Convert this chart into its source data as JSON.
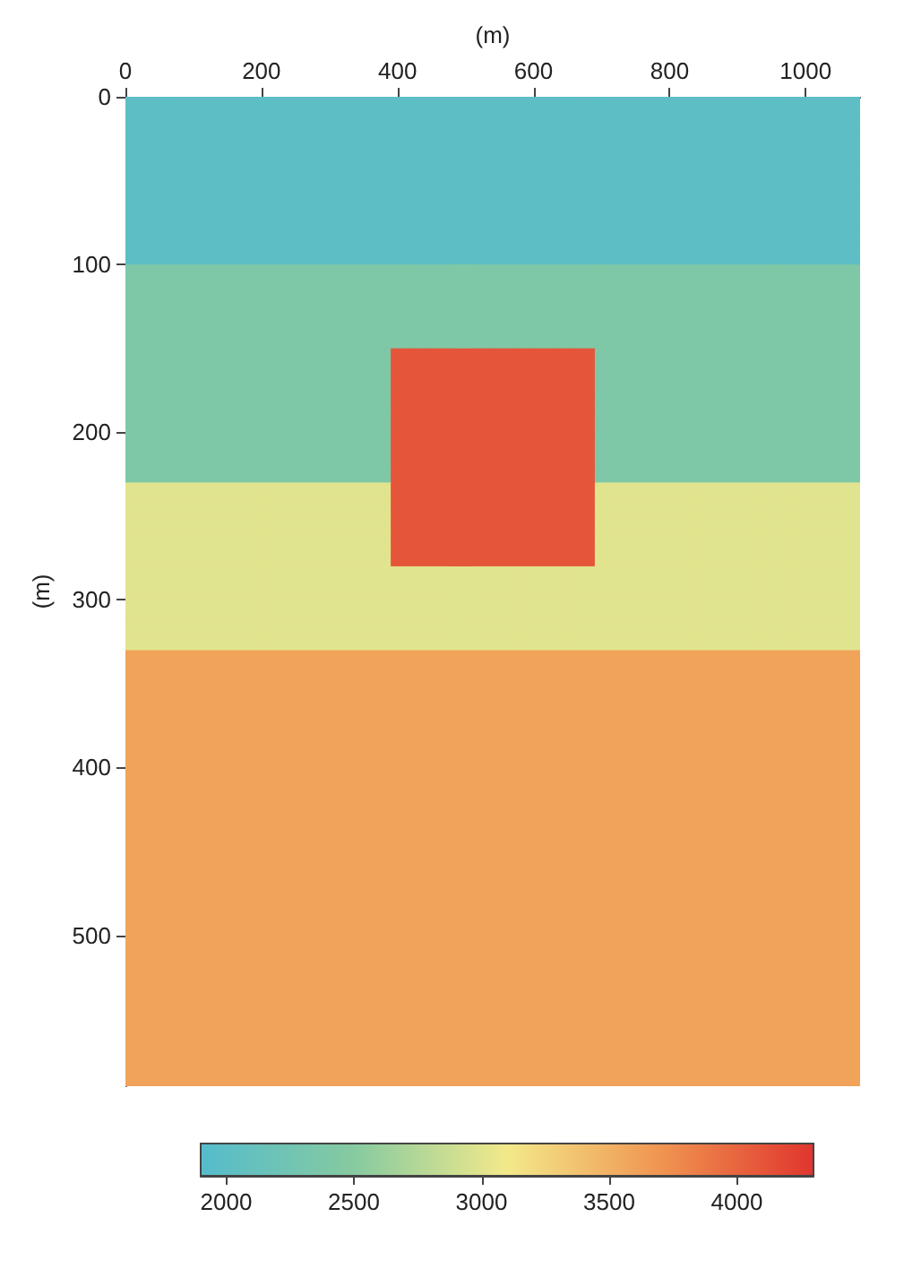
{
  "chart_data": {
    "type": "heatmap",
    "xlabel": "(m)",
    "ylabel": "(m)",
    "xlim": [
      0,
      1080
    ],
    "ylim": [
      590,
      0
    ],
    "xticks": [
      0,
      200,
      400,
      600,
      800,
      1000
    ],
    "yticks": [
      0,
      100,
      200,
      300,
      400,
      500
    ],
    "clim": [
      1900,
      4300
    ],
    "cticks": [
      2000,
      2500,
      3000,
      3500,
      4000
    ],
    "cells": [
      [
        2000,
        2000,
        2000,
        2000,
        2000,
        2000,
        2000,
        2000,
        2000,
        2000,
        2000,
        2000,
        2000,
        2000,
        2000,
        2000,
        2000,
        2000,
        2000,
        2000,
        2000,
        2000,
        2000,
        2000,
        2000,
        2000,
        2000,
        2000,
        2000,
        2000,
        2000,
        2000,
        2000,
        2000,
        2000,
        2000
      ],
      [
        2000,
        2000,
        2000,
        2000,
        2000,
        2000,
        2000,
        2000,
        2000,
        2000,
        2000,
        2000,
        2000,
        2000,
        2000,
        2000,
        2000,
        2000,
        2000,
        2000,
        2000,
        2000,
        2000,
        2000,
        2000,
        2000,
        2000,
        2000,
        2000,
        2000,
        2000,
        2000,
        2000,
        2000,
        2000,
        2000
      ],
      [
        2000,
        2000,
        2000,
        2000,
        2000,
        2000,
        2000,
        2000,
        2000,
        2000,
        2000,
        2000,
        2000,
        2000,
        2000,
        2000,
        2000,
        2000,
        2000,
        2000,
        2000,
        2000,
        2000,
        2000,
        2000,
        2000,
        2000,
        2000,
        2000,
        2000,
        2000,
        2000,
        2000,
        2000,
        2000,
        2000
      ],
      [
        2000,
        2000,
        2000,
        2000,
        2000,
        2000,
        2000,
        2000,
        2000,
        2000,
        2000,
        2000,
        2000,
        2000,
        2000,
        2000,
        2000,
        2000,
        2000,
        2000,
        2000,
        2000,
        2000,
        2000,
        2000,
        2000,
        2000,
        2000,
        2000,
        2000,
        2000,
        2000,
        2000,
        2000,
        2000,
        2000
      ],
      [
        2000,
        2000,
        2000,
        2000,
        2000,
        2000,
        2000,
        2000,
        2000,
        2000,
        2000,
        2000,
        2000,
        2000,
        2000,
        2000,
        2000,
        2000,
        2000,
        2000,
        2000,
        2000,
        2000,
        2000,
        2000,
        2000,
        2000,
        2000,
        2000,
        2000,
        2000,
        2000,
        2000,
        2000,
        2000,
        2000
      ],
      [
        2000,
        2000,
        2000,
        2000,
        2000,
        2000,
        2000,
        2000,
        2000,
        2000,
        2000,
        2000,
        2000,
        2000,
        2000,
        2000,
        2000,
        2000,
        2000,
        2000,
        2000,
        2000,
        2000,
        2000,
        2000,
        2000,
        2000,
        2000,
        2000,
        2000,
        2000,
        2000,
        2000,
        2000,
        2000,
        2000
      ],
      [
        2000,
        2000,
        2000,
        2000,
        2000,
        2000,
        2000,
        2000,
        2000,
        2000,
        2000,
        2000,
        2000,
        2000,
        2000,
        2000,
        2000,
        2000,
        2000,
        2000,
        2000,
        2000,
        2000,
        2000,
        2000,
        2000,
        2000,
        2000,
        2000,
        2000,
        2000,
        2000,
        2000,
        2000,
        2000,
        2000
      ],
      [
        2000,
        2000,
        2000,
        2000,
        2000,
        2000,
        2000,
        2000,
        2000,
        2000,
        2000,
        2000,
        2000,
        2000,
        2000,
        2000,
        2000,
        2000,
        2000,
        2000,
        2000,
        2000,
        2000,
        2000,
        2000,
        2000,
        2000,
        2000,
        2000,
        2000,
        2000,
        2000,
        2000,
        2000,
        2000,
        2000
      ],
      [
        2000,
        2000,
        2000,
        2000,
        2000,
        2000,
        2000,
        2000,
        2000,
        2000,
        2000,
        2000,
        2000,
        2000,
        2000,
        2000,
        2000,
        2000,
        2000,
        2000,
        2000,
        2000,
        2000,
        2000,
        2000,
        2000,
        2000,
        2000,
        2000,
        2000,
        2000,
        2000,
        2000,
        2000,
        2000,
        2000
      ],
      [
        2000,
        2000,
        2000,
        2000,
        2000,
        2000,
        2000,
        2000,
        2000,
        2000,
        2000,
        2000,
        2000,
        2000,
        2000,
        2000,
        2000,
        2000,
        2000,
        2000,
        2000,
        2000,
        2000,
        2000,
        2000,
        2000,
        2000,
        2000,
        2000,
        2000,
        2000,
        2000,
        2000,
        2000,
        2000,
        2000
      ],
      [
        2400,
        2400,
        2400,
        2400,
        2400,
        2400,
        2400,
        2400,
        2400,
        2400,
        2400,
        2400,
        2400,
        2400,
        2400,
        2400,
        2400,
        2400,
        2400,
        2400,
        2400,
        2400,
        2400,
        2400,
        2400,
        2400,
        2400,
        2400,
        2400,
        2400,
        2400,
        2400,
        2400,
        2400,
        2400,
        2400
      ],
      [
        2400,
        2400,
        2400,
        2400,
        2400,
        2400,
        2400,
        2400,
        2400,
        2400,
        2400,
        2400,
        2400,
        2400,
        2400,
        2400,
        2400,
        2400,
        2400,
        2400,
        2400,
        2400,
        2400,
        2400,
        2400,
        2400,
        2400,
        2400,
        2400,
        2400,
        2400,
        2400,
        2400,
        2400,
        2400,
        2400
      ],
      [
        2400,
        2400,
        2400,
        2400,
        2400,
        2400,
        2400,
        2400,
        2400,
        2400,
        2400,
        2400,
        2400,
        2400,
        2400,
        2400,
        2400,
        2400,
        2400,
        2400,
        2400,
        2400,
        2400,
        2400,
        2400,
        2400,
        2400,
        2400,
        2400,
        2400,
        2400,
        2400,
        2400,
        2400,
        2400,
        2400
      ],
      [
        2400,
        2400,
        2400,
        2400,
        2400,
        2400,
        2400,
        2400,
        2400,
        2400,
        2400,
        2400,
        2400,
        2400,
        2400,
        2400,
        2400,
        2400,
        2400,
        2400,
        2400,
        2400,
        2400,
        2400,
        2400,
        2400,
        2400,
        2400,
        2400,
        2400,
        2400,
        2400,
        2400,
        2400,
        2400,
        2400
      ],
      [
        2400,
        2400,
        2400,
        2400,
        2400,
        2400,
        2400,
        2400,
        2400,
        2400,
        2400,
        2400,
        2400,
        2400,
        2400,
        2400,
        2400,
        2400,
        2400,
        2400,
        2400,
        2400,
        2400,
        2400,
        2400,
        2400,
        2400,
        2400,
        2400,
        2400,
        2400,
        2400,
        2400,
        2400,
        2400,
        2400
      ],
      [
        2400,
        2400,
        2400,
        2400,
        2400,
        2400,
        2400,
        2400,
        2400,
        2400,
        2400,
        2400,
        2400,
        4100,
        4100,
        4100,
        4100,
        4100,
        4100,
        4100,
        4100,
        4100,
        4100,
        2400,
        2400,
        2400,
        2400,
        2400,
        2400,
        2400,
        2400,
        2400,
        2400,
        2400,
        2400,
        2400
      ],
      [
        2400,
        2400,
        2400,
        2400,
        2400,
        2400,
        2400,
        2400,
        2400,
        2400,
        2400,
        2400,
        2400,
        4100,
        4100,
        4100,
        4100,
        4100,
        4100,
        4100,
        4100,
        4100,
        4100,
        2400,
        2400,
        2400,
        2400,
        2400,
        2400,
        2400,
        2400,
        2400,
        2400,
        2400,
        2400,
        2400
      ],
      [
        2400,
        2400,
        2400,
        2400,
        2400,
        2400,
        2400,
        2400,
        2400,
        2400,
        2400,
        2400,
        2400,
        4100,
        4100,
        4100,
        4100,
        4100,
        4100,
        4100,
        4100,
        4100,
        4100,
        2400,
        2400,
        2400,
        2400,
        2400,
        2400,
        2400,
        2400,
        2400,
        2400,
        2400,
        2400,
        2400
      ],
      [
        2400,
        2400,
        2400,
        2400,
        2400,
        2400,
        2400,
        2400,
        2400,
        2400,
        2400,
        2400,
        2400,
        4100,
        4100,
        4100,
        4100,
        4100,
        4100,
        4100,
        4100,
        4100,
        4100,
        2400,
        2400,
        2400,
        2400,
        2400,
        2400,
        2400,
        2400,
        2400,
        2400,
        2400,
        2400,
        2400
      ],
      [
        2400,
        2400,
        2400,
        2400,
        2400,
        2400,
        2400,
        2400,
        2400,
        2400,
        2400,
        2400,
        2400,
        4100,
        4100,
        4100,
        4100,
        4100,
        4100,
        4100,
        4100,
        4100,
        4100,
        2400,
        2400,
        2400,
        2400,
        2400,
        2400,
        2400,
        2400,
        2400,
        2400,
        2400,
        2400,
        2400
      ],
      [
        2400,
        2400,
        2400,
        2400,
        2400,
        2400,
        2400,
        2400,
        2400,
        2400,
        2400,
        2400,
        2400,
        4100,
        4100,
        4100,
        4100,
        4100,
        4100,
        4100,
        4100,
        4100,
        4100,
        2400,
        2400,
        2400,
        2400,
        2400,
        2400,
        2400,
        2400,
        2400,
        2400,
        2400,
        2400,
        2400
      ],
      [
        2400,
        2400,
        2400,
        2400,
        2400,
        2400,
        2400,
        2400,
        2400,
        2400,
        2400,
        2400,
        2400,
        4100,
        4100,
        4100,
        4100,
        4100,
        4100,
        4100,
        4100,
        4100,
        4100,
        2400,
        2400,
        2400,
        2400,
        2400,
        2400,
        2400,
        2400,
        2400,
        2400,
        2400,
        2400,
        2400
      ],
      [
        2400,
        2400,
        2400,
        2400,
        2400,
        2400,
        2400,
        2400,
        2400,
        2400,
        2400,
        2400,
        2400,
        4100,
        4100,
        4100,
        4100,
        4100,
        4100,
        4100,
        4100,
        4100,
        4100,
        2400,
        2400,
        2400,
        2400,
        2400,
        2400,
        2400,
        2400,
        2400,
        2400,
        2400,
        2400,
        2400
      ],
      [
        3000,
        3000,
        3000,
        3000,
        3000,
        3000,
        3000,
        3000,
        3000,
        3000,
        3000,
        3000,
        3000,
        4100,
        4100,
        4100,
        4100,
        4100,
        4100,
        4100,
        4100,
        4100,
        4100,
        3000,
        3000,
        3000,
        3000,
        3000,
        3000,
        3000,
        3000,
        3000,
        3000,
        3000,
        3000,
        3000
      ],
      [
        3000,
        3000,
        3000,
        3000,
        3000,
        3000,
        3000,
        3000,
        3000,
        3000,
        3000,
        3000,
        3000,
        4100,
        4100,
        4100,
        4100,
        4100,
        4100,
        4100,
        4100,
        4100,
        4100,
        3000,
        3000,
        3000,
        3000,
        3000,
        3000,
        3000,
        3000,
        3000,
        3000,
        3000,
        3000,
        3000
      ],
      [
        3000,
        3000,
        3000,
        3000,
        3000,
        3000,
        3000,
        3000,
        3000,
        3000,
        3000,
        3000,
        3000,
        4100,
        4100,
        4100,
        4100,
        4100,
        4100,
        4100,
        4100,
        4100,
        4100,
        3000,
        3000,
        3000,
        3000,
        3000,
        3000,
        3000,
        3000,
        3000,
        3000,
        3000,
        3000,
        3000
      ],
      [
        3000,
        3000,
        3000,
        3000,
        3000,
        3000,
        3000,
        3000,
        3000,
        3000,
        3000,
        3000,
        3000,
        4100,
        4100,
        4100,
        4100,
        4100,
        4100,
        4100,
        4100,
        4100,
        4100,
        3000,
        3000,
        3000,
        3000,
        3000,
        3000,
        3000,
        3000,
        3000,
        3000,
        3000,
        3000,
        3000
      ],
      [
        3000,
        3000,
        3000,
        3000,
        3000,
        3000,
        3000,
        3000,
        3000,
        3000,
        3000,
        3000,
        3000,
        4100,
        4100,
        4100,
        4100,
        4100,
        4100,
        4100,
        4100,
        4100,
        4100,
        3000,
        3000,
        3000,
        3000,
        3000,
        3000,
        3000,
        3000,
        3000,
        3000,
        3000,
        3000,
        3000
      ],
      [
        3000,
        3000,
        3000,
        3000,
        3000,
        3000,
        3000,
        3000,
        3000,
        3000,
        3000,
        3000,
        3000,
        3000,
        3000,
        3000,
        3000,
        3000,
        3000,
        3000,
        3000,
        3000,
        3000,
        3000,
        3000,
        3000,
        3000,
        3000,
        3000,
        3000,
        3000,
        3000,
        3000,
        3000,
        3000,
        3000
      ],
      [
        3000,
        3000,
        3000,
        3000,
        3000,
        3000,
        3000,
        3000,
        3000,
        3000,
        3000,
        3000,
        3000,
        3000,
        3000,
        3000,
        3000,
        3000,
        3000,
        3000,
        3000,
        3000,
        3000,
        3000,
        3000,
        3000,
        3000,
        3000,
        3000,
        3000,
        3000,
        3000,
        3000,
        3000,
        3000,
        3000
      ],
      [
        3000,
        3000,
        3000,
        3000,
        3000,
        3000,
        3000,
        3000,
        3000,
        3000,
        3000,
        3000,
        3000,
        3000,
        3000,
        3000,
        3000,
        3000,
        3000,
        3000,
        3000,
        3000,
        3000,
        3000,
        3000,
        3000,
        3000,
        3000,
        3000,
        3000,
        3000,
        3000,
        3000,
        3000,
        3000,
        3000
      ],
      [
        3000,
        3000,
        3000,
        3000,
        3000,
        3000,
        3000,
        3000,
        3000,
        3000,
        3000,
        3000,
        3000,
        3000,
        3000,
        3000,
        3000,
        3000,
        3000,
        3000,
        3000,
        3000,
        3000,
        3000,
        3000,
        3000,
        3000,
        3000,
        3000,
        3000,
        3000,
        3000,
        3000,
        3000,
        3000,
        3000
      ],
      [
        3000,
        3000,
        3000,
        3000,
        3000,
        3000,
        3000,
        3000,
        3000,
        3000,
        3000,
        3000,
        3000,
        3000,
        3000,
        3000,
        3000,
        3000,
        3000,
        3000,
        3000,
        3000,
        3000,
        3000,
        3000,
        3000,
        3000,
        3000,
        3000,
        3000,
        3000,
        3000,
        3000,
        3000,
        3000,
        3000
      ],
      [
        3600,
        3600,
        3600,
        3600,
        3600,
        3600,
        3600,
        3600,
        3600,
        3600,
        3600,
        3600,
        3600,
        3600,
        3600,
        3600,
        3600,
        3600,
        3600,
        3600,
        3600,
        3600,
        3600,
        3600,
        3600,
        3600,
        3600,
        3600,
        3600,
        3600,
        3600,
        3600,
        3600,
        3600,
        3600,
        3600
      ],
      [
        3600,
        3600,
        3600,
        3600,
        3600,
        3600,
        3600,
        3600,
        3600,
        3600,
        3600,
        3600,
        3600,
        3600,
        3600,
        3600,
        3600,
        3600,
        3600,
        3600,
        3600,
        3600,
        3600,
        3600,
        3600,
        3600,
        3600,
        3600,
        3600,
        3600,
        3600,
        3600,
        3600,
        3600,
        3600,
        3600
      ],
      [
        3600,
        3600,
        3600,
        3600,
        3600,
        3600,
        3600,
        3600,
        3600,
        3600,
        3600,
        3600,
        3600,
        3600,
        3600,
        3600,
        3600,
        3600,
        3600,
        3600,
        3600,
        3600,
        3600,
        3600,
        3600,
        3600,
        3600,
        3600,
        3600,
        3600,
        3600,
        3600,
        3600,
        3600,
        3600,
        3600
      ],
      [
        3600,
        3600,
        3600,
        3600,
        3600,
        3600,
        3600,
        3600,
        3600,
        3600,
        3600,
        3600,
        3600,
        3600,
        3600,
        3600,
        3600,
        3600,
        3600,
        3600,
        3600,
        3600,
        3600,
        3600,
        3600,
        3600,
        3600,
        3600,
        3600,
        3600,
        3600,
        3600,
        3600,
        3600,
        3600,
        3600
      ],
      [
        3600,
        3600,
        3600,
        3600,
        3600,
        3600,
        3600,
        3600,
        3600,
        3600,
        3600,
        3600,
        3600,
        3600,
        3600,
        3600,
        3600,
        3600,
        3600,
        3600,
        3600,
        3600,
        3600,
        3600,
        3600,
        3600,
        3600,
        3600,
        3600,
        3600,
        3600,
        3600,
        3600,
        3600,
        3600,
        3600
      ],
      [
        3600,
        3600,
        3600,
        3600,
        3600,
        3600,
        3600,
        3600,
        3600,
        3600,
        3600,
        3600,
        3600,
        3600,
        3600,
        3600,
        3600,
        3600,
        3600,
        3600,
        3600,
        3600,
        3600,
        3600,
        3600,
        3600,
        3600,
        3600,
        3600,
        3600,
        3600,
        3600,
        3600,
        3600,
        3600,
        3600
      ],
      [
        3600,
        3600,
        3600,
        3600,
        3600,
        3600,
        3600,
        3600,
        3600,
        3600,
        3600,
        3600,
        3600,
        3600,
        3600,
        3600,
        3600,
        3600,
        3600,
        3600,
        3600,
        3600,
        3600,
        3600,
        3600,
        3600,
        3600,
        3600,
        3600,
        3600,
        3600,
        3600,
        3600,
        3600,
        3600,
        3600
      ],
      [
        3600,
        3600,
        3600,
        3600,
        3600,
        3600,
        3600,
        3600,
        3600,
        3600,
        3600,
        3600,
        3600,
        3600,
        3600,
        3600,
        3600,
        3600,
        3600,
        3600,
        3600,
        3600,
        3600,
        3600,
        3600,
        3600,
        3600,
        3600,
        3600,
        3600,
        3600,
        3600,
        3600,
        3600,
        3600,
        3600
      ],
      [
        3600,
        3600,
        3600,
        3600,
        3600,
        3600,
        3600,
        3600,
        3600,
        3600,
        3600,
        3600,
        3600,
        3600,
        3600,
        3600,
        3600,
        3600,
        3600,
        3600,
        3600,
        3600,
        3600,
        3600,
        3600,
        3600,
        3600,
        3600,
        3600,
        3600,
        3600,
        3600,
        3600,
        3600,
        3600,
        3600
      ],
      [
        3600,
        3600,
        3600,
        3600,
        3600,
        3600,
        3600,
        3600,
        3600,
        3600,
        3600,
        3600,
        3600,
        3600,
        3600,
        3600,
        3600,
        3600,
        3600,
        3600,
        3600,
        3600,
        3600,
        3600,
        3600,
        3600,
        3600,
        3600,
        3600,
        3600,
        3600,
        3600,
        3600,
        3600,
        3600,
        3600
      ],
      [
        3600,
        3600,
        3600,
        3600,
        3600,
        3600,
        3600,
        3600,
        3600,
        3600,
        3600,
        3600,
        3600,
        3600,
        3600,
        3600,
        3600,
        3600,
        3600,
        3600,
        3600,
        3600,
        3600,
        3600,
        3600,
        3600,
        3600,
        3600,
        3600,
        3600,
        3600,
        3600,
        3600,
        3600,
        3600,
        3600
      ],
      [
        3600,
        3600,
        3600,
        3600,
        3600,
        3600,
        3600,
        3600,
        3600,
        3600,
        3600,
        3600,
        3600,
        3600,
        3600,
        3600,
        3600,
        3600,
        3600,
        3600,
        3600,
        3600,
        3600,
        3600,
        3600,
        3600,
        3600,
        3600,
        3600,
        3600,
        3600,
        3600,
        3600,
        3600,
        3600,
        3600
      ],
      [
        3600,
        3600,
        3600,
        3600,
        3600,
        3600,
        3600,
        3600,
        3600,
        3600,
        3600,
        3600,
        3600,
        3600,
        3600,
        3600,
        3600,
        3600,
        3600,
        3600,
        3600,
        3600,
        3600,
        3600,
        3600,
        3600,
        3600,
        3600,
        3600,
        3600,
        3600,
        3600,
        3600,
        3600,
        3600,
        3600
      ],
      [
        3600,
        3600,
        3600,
        3600,
        3600,
        3600,
        3600,
        3600,
        3600,
        3600,
        3600,
        3600,
        3600,
        3600,
        3600,
        3600,
        3600,
        3600,
        3600,
        3600,
        3600,
        3600,
        3600,
        3600,
        3600,
        3600,
        3600,
        3600,
        3600,
        3600,
        3600,
        3600,
        3600,
        3600,
        3600,
        3600
      ],
      [
        3600,
        3600,
        3600,
        3600,
        3600,
        3600,
        3600,
        3600,
        3600,
        3600,
        3600,
        3600,
        3600,
        3600,
        3600,
        3600,
        3600,
        3600,
        3600,
        3600,
        3600,
        3600,
        3600,
        3600,
        3600,
        3600,
        3600,
        3600,
        3600,
        3600,
        3600,
        3600,
        3600,
        3600,
        3600,
        3600
      ],
      [
        3600,
        3600,
        3600,
        3600,
        3600,
        3600,
        3600,
        3600,
        3600,
        3600,
        3600,
        3600,
        3600,
        3600,
        3600,
        3600,
        3600,
        3600,
        3600,
        3600,
        3600,
        3600,
        3600,
        3600,
        3600,
        3600,
        3600,
        3600,
        3600,
        3600,
        3600,
        3600,
        3600,
        3600,
        3600,
        3600
      ],
      [
        3600,
        3600,
        3600,
        3600,
        3600,
        3600,
        3600,
        3600,
        3600,
        3600,
        3600,
        3600,
        3600,
        3600,
        3600,
        3600,
        3600,
        3600,
        3600,
        3600,
        3600,
        3600,
        3600,
        3600,
        3600,
        3600,
        3600,
        3600,
        3600,
        3600,
        3600,
        3600,
        3600,
        3600,
        3600,
        3600
      ],
      [
        3600,
        3600,
        3600,
        3600,
        3600,
        3600,
        3600,
        3600,
        3600,
        3600,
        3600,
        3600,
        3600,
        3600,
        3600,
        3600,
        3600,
        3600,
        3600,
        3600,
        3600,
        3600,
        3600,
        3600,
        3600,
        3600,
        3600,
        3600,
        3600,
        3600,
        3600,
        3600,
        3600,
        3600,
        3600,
        3600
      ],
      [
        3600,
        3600,
        3600,
        3600,
        3600,
        3600,
        3600,
        3600,
        3600,
        3600,
        3600,
        3600,
        3600,
        3600,
        3600,
        3600,
        3600,
        3600,
        3600,
        3600,
        3600,
        3600,
        3600,
        3600,
        3600,
        3600,
        3600,
        3600,
        3600,
        3600,
        3600,
        3600,
        3600,
        3600,
        3600,
        3600
      ],
      [
        3600,
        3600,
        3600,
        3600,
        3600,
        3600,
        3600,
        3600,
        3600,
        3600,
        3600,
        3600,
        3600,
        3600,
        3600,
        3600,
        3600,
        3600,
        3600,
        3600,
        3600,
        3600,
        3600,
        3600,
        3600,
        3600,
        3600,
        3600,
        3600,
        3600,
        3600,
        3600,
        3600,
        3600,
        3600,
        3600
      ],
      [
        3600,
        3600,
        3600,
        3600,
        3600,
        3600,
        3600,
        3600,
        3600,
        3600,
        3600,
        3600,
        3600,
        3600,
        3600,
        3600,
        3600,
        3600,
        3600,
        3600,
        3600,
        3600,
        3600,
        3600,
        3600,
        3600,
        3600,
        3600,
        3600,
        3600,
        3600,
        3600,
        3600,
        3600,
        3600,
        3600
      ],
      [
        3600,
        3600,
        3600,
        3600,
        3600,
        3600,
        3600,
        3600,
        3600,
        3600,
        3600,
        3600,
        3600,
        3600,
        3600,
        3600,
        3600,
        3600,
        3600,
        3600,
        3600,
        3600,
        3600,
        3600,
        3600,
        3600,
        3600,
        3600,
        3600,
        3600,
        3600,
        3600,
        3600,
        3600,
        3600,
        3600
      ],
      [
        3600,
        3600,
        3600,
        3600,
        3600,
        3600,
        3600,
        3600,
        3600,
        3600,
        3600,
        3600,
        3600,
        3600,
        3600,
        3600,
        3600,
        3600,
        3600,
        3600,
        3600,
        3600,
        3600,
        3600,
        3600,
        3600,
        3600,
        3600,
        3600,
        3600,
        3600,
        3600,
        3600,
        3600,
        3600,
        3600
      ],
      [
        3600,
        3600,
        3600,
        3600,
        3600,
        3600,
        3600,
        3600,
        3600,
        3600,
        3600,
        3600,
        3600,
        3600,
        3600,
        3600,
        3600,
        3600,
        3600,
        3600,
        3600,
        3600,
        3600,
        3600,
        3600,
        3600,
        3600,
        3600,
        3600,
        3600,
        3600,
        3600,
        3600,
        3600,
        3600,
        3600
      ],
      [
        3600,
        3600,
        3600,
        3600,
        3600,
        3600,
        3600,
        3600,
        3600,
        3600,
        3600,
        3600,
        3600,
        3600,
        3600,
        3600,
        3600,
        3600,
        3600,
        3600,
        3600,
        3600,
        3600,
        3600,
        3600,
        3600,
        3600,
        3600,
        3600,
        3600,
        3600,
        3600,
        3600,
        3600,
        3600,
        3600
      ],
      [
        3600,
        3600,
        3600,
        3600,
        3600,
        3600,
        3600,
        3600,
        3600,
        3600,
        3600,
        3600,
        3600,
        3600,
        3600,
        3600,
        3600,
        3600,
        3600,
        3600,
        3600,
        3600,
        3600,
        3600,
        3600,
        3600,
        3600,
        3600,
        3600,
        3600,
        3600,
        3600,
        3600,
        3600,
        3600,
        3600
      ]
    ]
  }
}
